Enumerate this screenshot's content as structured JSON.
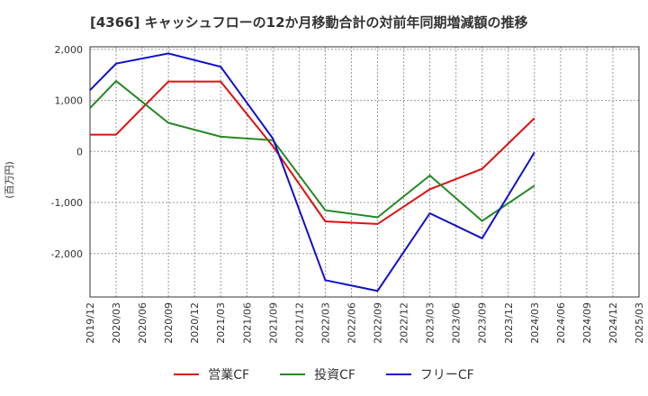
{
  "title": "[4366]  キャッシュフローの12か月移動合計の対前年同期増減額の推移",
  "chart_data": {
    "type": "line",
    "title": "[4366]  キャッシュフローの12か月移動合計の対前年同期増減額の推移",
    "ylabel": "(百万円)",
    "xlabel": "",
    "ylim": [
      -2850,
      2050
    ],
    "yticks": [
      2000,
      1000,
      0,
      -1000,
      -2000
    ],
    "ytick_labels": [
      "2,000",
      "1,000",
      "0",
      "-1,000",
      "-2,000"
    ],
    "categories": [
      "2019/12",
      "2020/03",
      "2020/06",
      "2020/09",
      "2020/12",
      "2021/03",
      "2021/06",
      "2021/09",
      "2021/12",
      "2022/03",
      "2022/06",
      "2022/09",
      "2022/12",
      "2023/03",
      "2023/06",
      "2023/09",
      "2023/12",
      "2024/03",
      "2024/06",
      "2024/09",
      "2024/12",
      "2025/03"
    ],
    "grid": true,
    "legend_position": "bottom",
    "series": [
      {
        "name": "営業CF",
        "color": "#dd1111",
        "values": [
          330,
          330,
          null,
          1370,
          null,
          1370,
          null,
          100,
          null,
          -1370,
          null,
          -1420,
          null,
          -740,
          null,
          -340,
          null,
          650,
          null,
          null,
          null,
          null
        ]
      },
      {
        "name": "投資CF",
        "color": "#228822",
        "values": [
          850,
          1380,
          null,
          560,
          null,
          290,
          null,
          220,
          null,
          -1150,
          null,
          -1290,
          null,
          -470,
          null,
          -1360,
          null,
          -670,
          null,
          null,
          null,
          null
        ]
      },
      {
        "name": "フリーCF",
        "color": "#1111cc",
        "values": [
          1200,
          1720,
          null,
          1920,
          null,
          1660,
          null,
          250,
          null,
          -2520,
          null,
          -2730,
          null,
          -1210,
          null,
          -1700,
          null,
          -20,
          null,
          null,
          null,
          null
        ]
      }
    ]
  }
}
